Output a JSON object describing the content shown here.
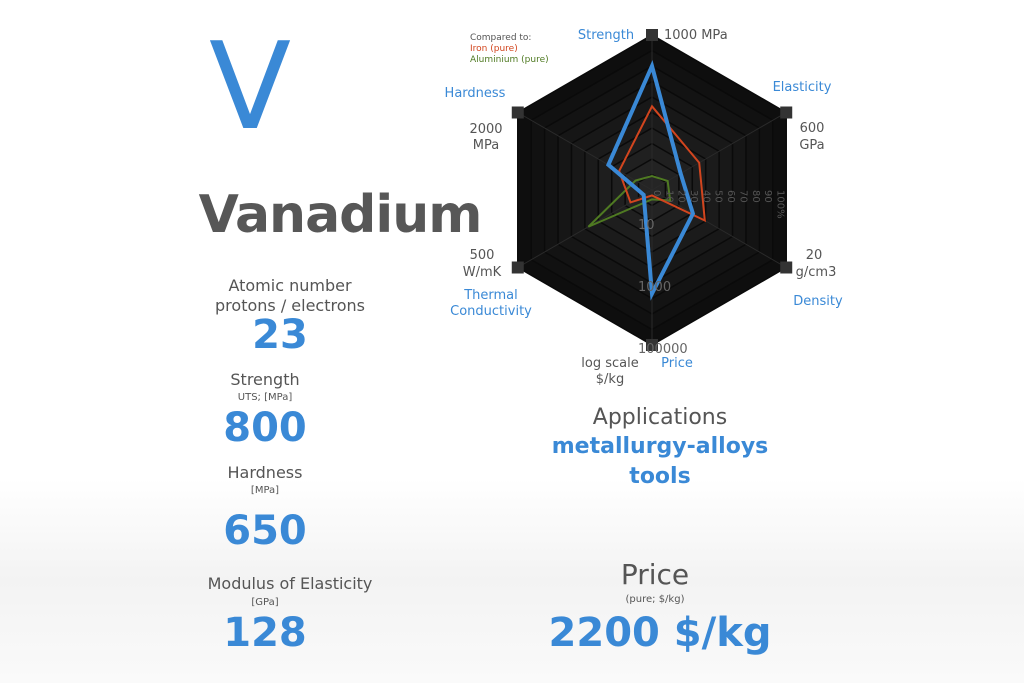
{
  "element": {
    "symbol": "V",
    "name": "Vanadium"
  },
  "properties": {
    "atomic_number": {
      "label1": "Atomic number",
      "label2": "protons / electrons",
      "value": "23"
    },
    "strength": {
      "label": "Strength",
      "unit": "UTS; [MPa]",
      "value": "800"
    },
    "hardness": {
      "label": "Hardness",
      "unit": "[MPa]",
      "value": "650"
    },
    "elasticity": {
      "label": "Modulus of Elasticity",
      "unit": "[GPa]",
      "value": "128"
    }
  },
  "applications": {
    "title": "Applications",
    "items": [
      "metallurgy-alloys",
      "tools"
    ]
  },
  "price": {
    "title": "Price",
    "unit": "(pure; $/kg)",
    "value": "2200 $/kg"
  },
  "colors": {
    "accent": "#3a89d6",
    "iron": "#d2451e",
    "aluminium": "#4f7a22",
    "chart_bg": "#1c1c1c"
  },
  "chart_data": {
    "type": "radar",
    "legend": {
      "title": "Compared to:",
      "placement": "top-left"
    },
    "axes": [
      {
        "name": "Strength",
        "max_label": "1000 MPa",
        "max": 1000,
        "scale": "linear"
      },
      {
        "name": "Elasticity",
        "max_label": "600 GPa",
        "max": 600,
        "scale": "linear"
      },
      {
        "name": "Density",
        "max_label": "20 g/cm3",
        "max": 20,
        "scale": "linear"
      },
      {
        "name": "Price",
        "max_label": "log scale $/kg",
        "min": 1,
        "max": 100000,
        "scale": "log"
      },
      {
        "name": "Thermal Conductivity",
        "max_label": "500 W/mK",
        "max": 500,
        "scale": "linear"
      },
      {
        "name": "Hardness",
        "max_label": "2000 MPa",
        "max": 2000,
        "scale": "linear"
      }
    ],
    "percent_ticks": [
      "0",
      "10",
      "20",
      "30",
      "40",
      "50",
      "60",
      "70",
      "80",
      "90",
      "100%"
    ],
    "price_ticks": [
      "10",
      "1000",
      "100000"
    ],
    "series": [
      {
        "name": "Vanadium",
        "color": "#3a89d6",
        "values": [
          800,
          128,
          6.1,
          2200,
          31,
          650
        ]
      },
      {
        "name": "Iron (pure)",
        "color": "#d2451e",
        "values": [
          540,
          211,
          7.87,
          1.5,
          80,
          490
        ]
      },
      {
        "name": "Aluminium (pure)",
        "color": "#4f7a22",
        "values": [
          90,
          70,
          2.7,
          2,
          237,
          245
        ]
      }
    ]
  }
}
